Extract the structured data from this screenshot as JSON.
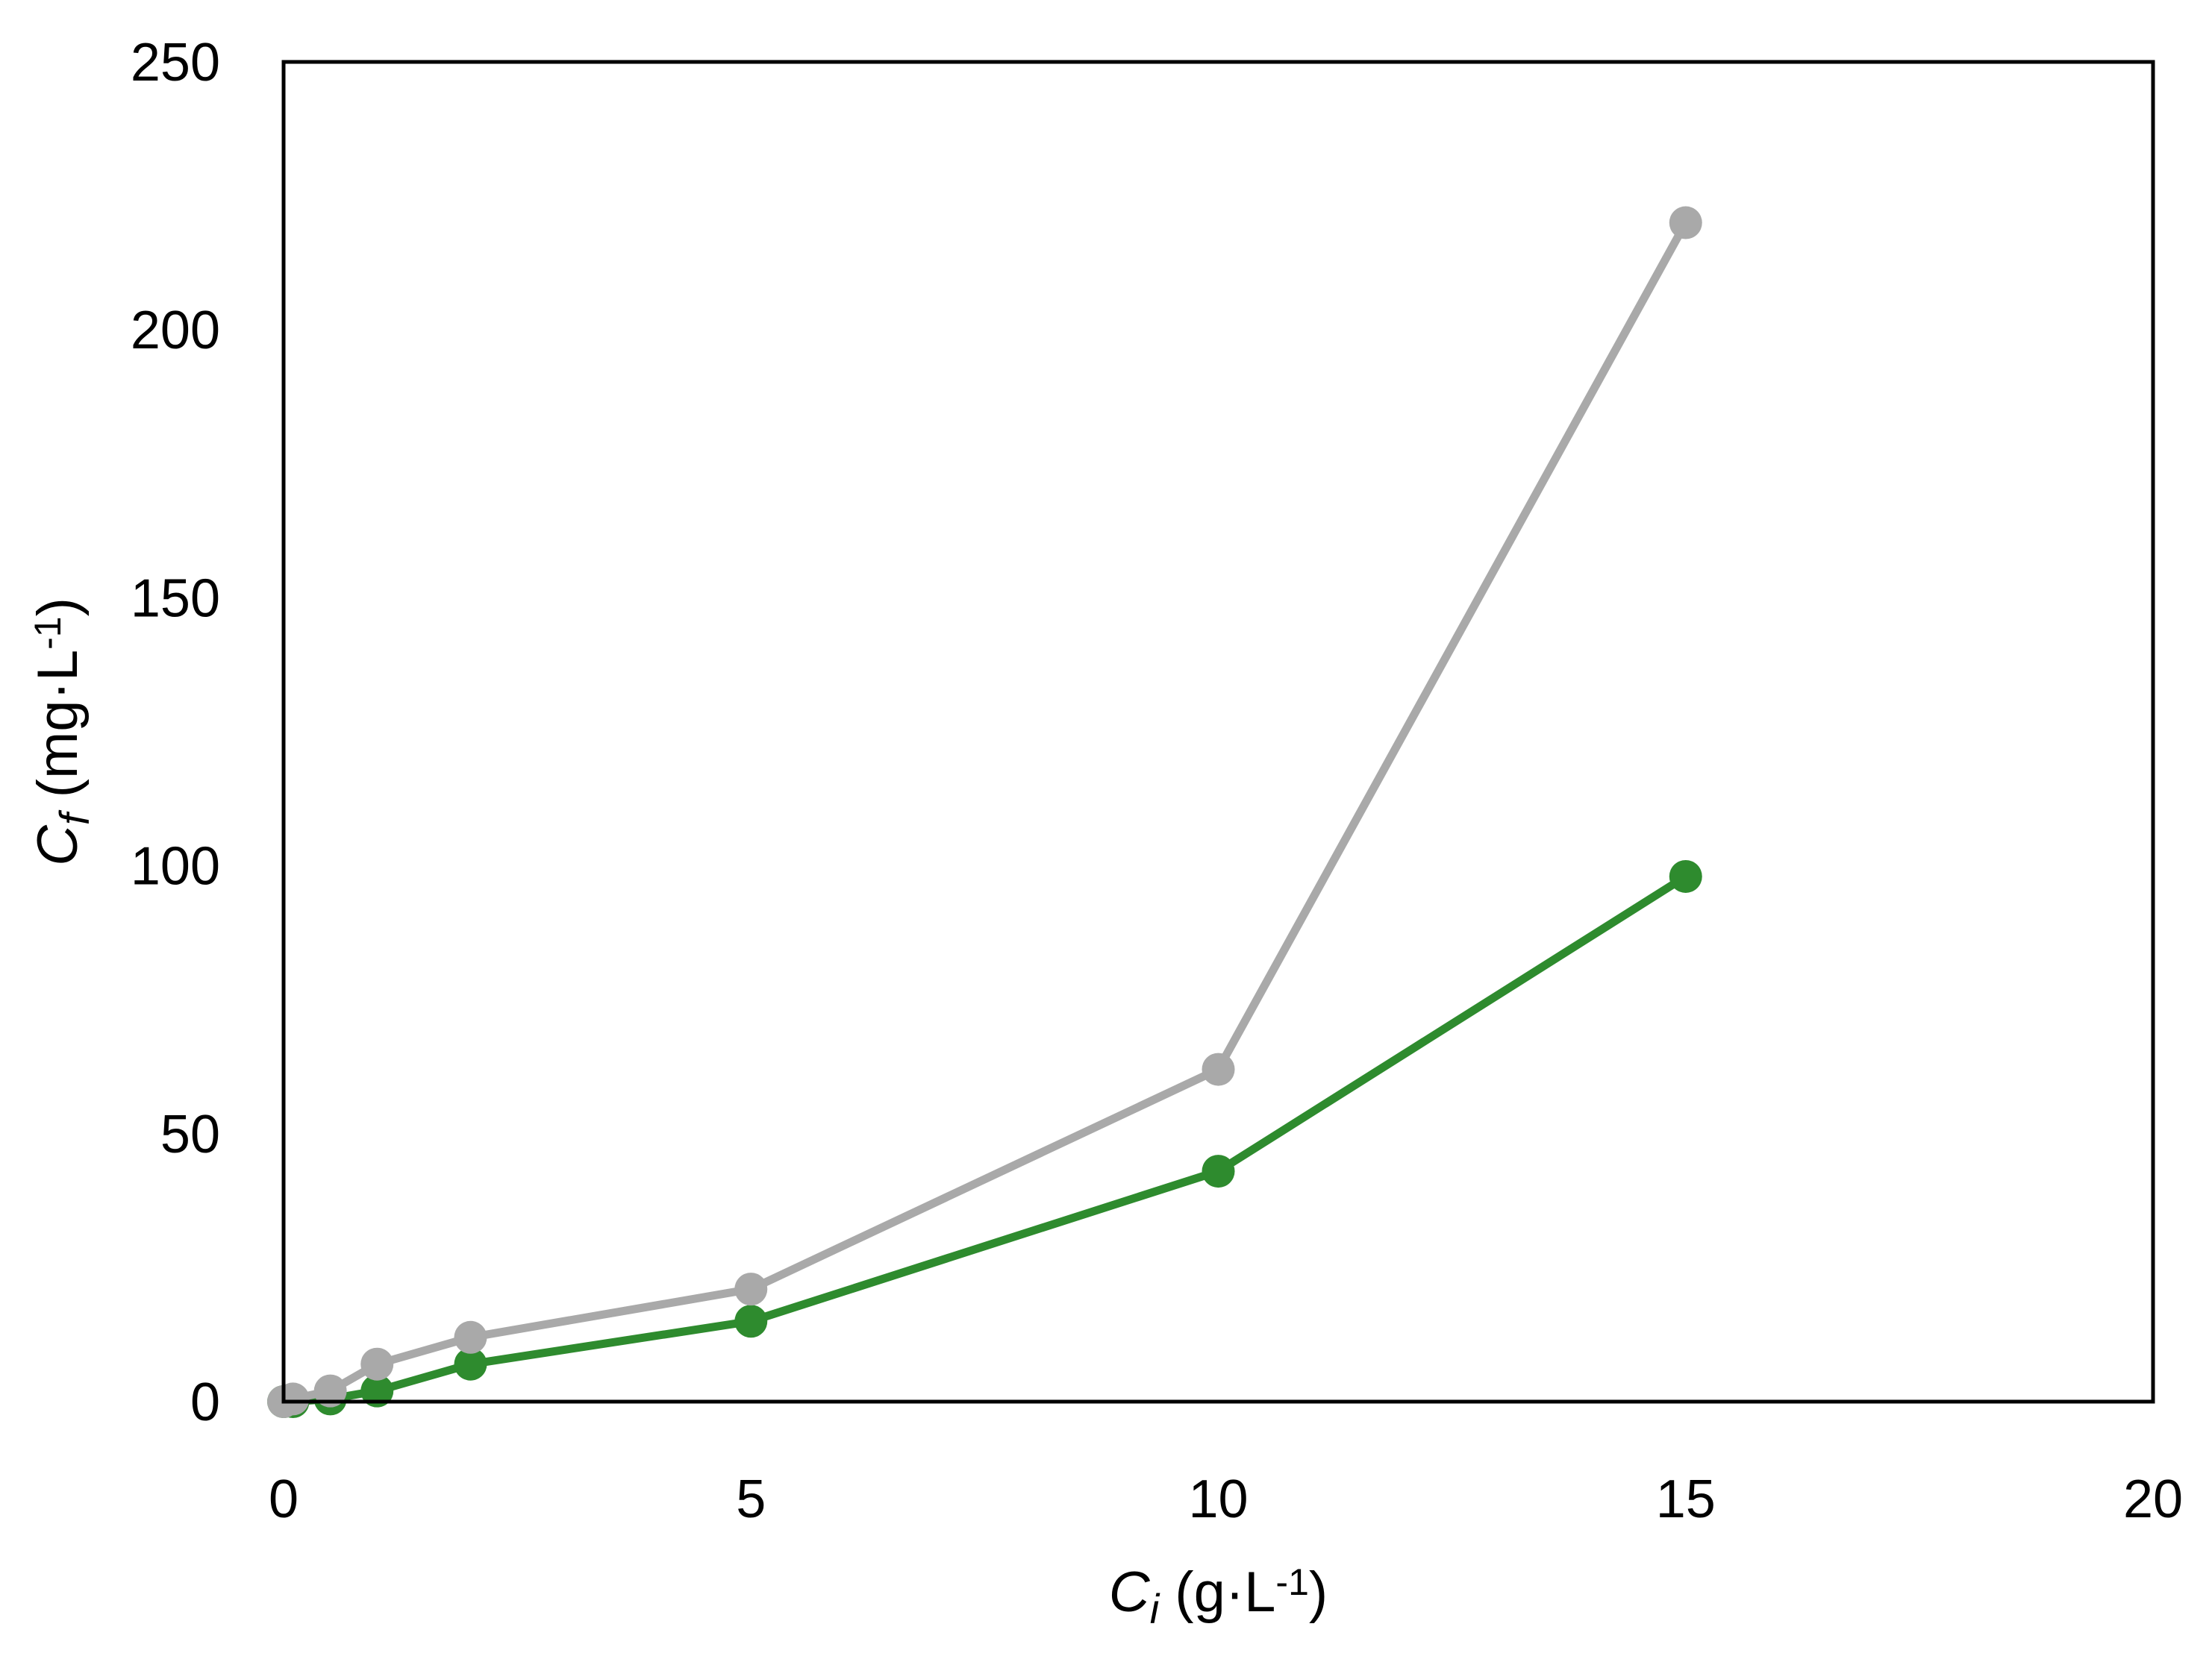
{
  "chart_data": {
    "type": "line",
    "title": "",
    "xlabel": {
      "symbol": "C",
      "subscript": "i",
      "unit_open": " (g·L",
      "unit_exp": "-1",
      "unit_close": ")"
    },
    "ylabel": {
      "symbol": "C",
      "subscript": "f",
      "unit_open": " (mg·L",
      "unit_exp": "-1",
      "unit_close": ")"
    },
    "xlim": [
      0,
      20
    ],
    "ylim": [
      0,
      250
    ],
    "xticks": [
      0,
      5,
      10,
      15,
      20
    ],
    "yticks": [
      0,
      50,
      100,
      150,
      200,
      250
    ],
    "xtick_labels": [
      "0",
      "5",
      "10",
      "15",
      "20"
    ],
    "ytick_labels": [
      "0",
      "50",
      "100",
      "150",
      "200",
      "250"
    ],
    "grid": false,
    "legend": "none",
    "series": [
      {
        "color": "#2e8b2e",
        "x": [
          0,
          0.1,
          0.5,
          1,
          2,
          5,
          10,
          15
        ],
        "y": [
          0,
          0,
          0.5,
          2,
          7,
          15,
          43,
          98
        ]
      },
      {
        "color": "#a9a9a9",
        "x": [
          0,
          0.1,
          0.5,
          1,
          2,
          5,
          10,
          15
        ],
        "y": [
          0,
          0.5,
          2,
          7,
          12,
          21,
          62,
          220
        ]
      }
    ]
  }
}
